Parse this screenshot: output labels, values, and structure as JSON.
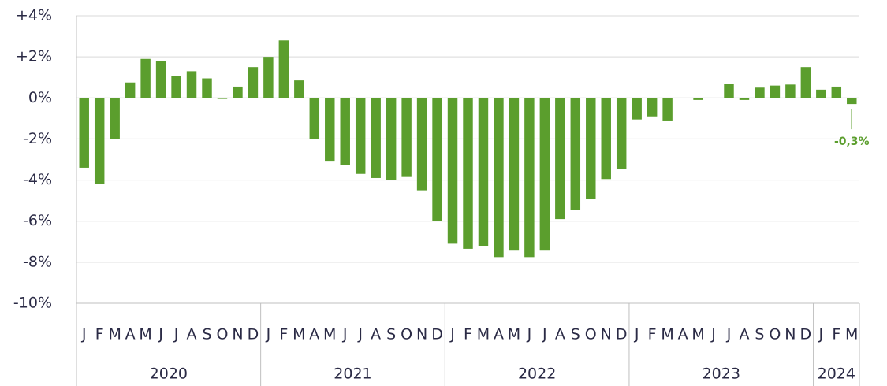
{
  "chart_data": {
    "type": "bar",
    "categories": [
      "J",
      "F",
      "M",
      "A",
      "M",
      "J",
      "J",
      "A",
      "S",
      "O",
      "N",
      "D",
      "J",
      "F",
      "M",
      "A",
      "M",
      "J",
      "J",
      "A",
      "S",
      "O",
      "N",
      "D",
      "J",
      "F",
      "M",
      "A",
      "M",
      "J",
      "J",
      "A",
      "S",
      "O",
      "N",
      "D",
      "J",
      "F",
      "M",
      "A",
      "M",
      "J",
      "J",
      "A",
      "S",
      "O",
      "N",
      "D",
      "J",
      "F",
      "M"
    ],
    "groups": [
      "2020",
      "2021",
      "2022",
      "2023",
      "2024"
    ],
    "values": [
      -3.4,
      -4.2,
      -2.0,
      0.75,
      1.9,
      1.8,
      1.05,
      1.3,
      0.95,
      -0.05,
      0.55,
      1.5,
      2.0,
      2.8,
      0.85,
      -2.0,
      -3.1,
      -3.25,
      -3.7,
      -3.9,
      -4.0,
      -3.85,
      -4.5,
      -6.0,
      -7.1,
      -7.35,
      -7.2,
      -7.75,
      -7.4,
      -7.75,
      -7.4,
      -5.9,
      -5.45,
      -4.9,
      -3.95,
      -3.45,
      -1.05,
      -0.9,
      -1.1,
      0,
      -0.1,
      0,
      0.7,
      -0.1,
      0.5,
      0.6,
      0.65,
      1.5,
      0.4,
      0.55,
      -0.3
    ],
    "value_labels": [
      null,
      null,
      null,
      null,
      null,
      null,
      null,
      null,
      null,
      null,
      null,
      null,
      null,
      null,
      null,
      null,
      null,
      null,
      null,
      null,
      null,
      null,
      null,
      null,
      null,
      null,
      null,
      null,
      null,
      null,
      null,
      null,
      null,
      null,
      null,
      null,
      null,
      null,
      null,
      null,
      null,
      null,
      null,
      null,
      null,
      null,
      null,
      null,
      null,
      null,
      "-0,3%"
    ],
    "color": "#5b9e2d",
    "ylim": [
      -10,
      4
    ],
    "yticks": [
      {
        "value": -10,
        "label": "-10%"
      },
      {
        "value": -8,
        "label": "-8%"
      },
      {
        "value": -6,
        "label": "-6%"
      },
      {
        "value": -4,
        "label": "-4%"
      },
      {
        "value": -2,
        "label": "-2%"
      },
      {
        "value": 0,
        "label": "0%"
      },
      {
        "value": 2,
        "label": "+2%"
      },
      {
        "value": 4,
        "label": "+4%"
      }
    ],
    "grid": true
  }
}
